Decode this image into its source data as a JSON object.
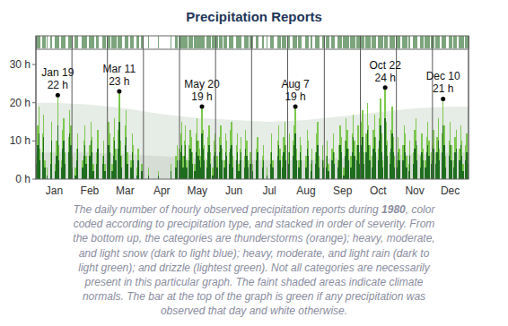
{
  "chart_data": {
    "type": "bar",
    "title": "Precipitation Reports",
    "stacked": true,
    "grid": true,
    "categories": [
      null,
      null,
      null,
      null,
      null,
      null,
      null,
      null,
      null,
      null,
      null,
      null,
      null,
      null,
      null,
      "Jan",
      null,
      null,
      null,
      null,
      null,
      null,
      null,
      null,
      null,
      null,
      null,
      null,
      null,
      null,
      null,
      null,
      null,
      null,
      null,
      null,
      null,
      null,
      null,
      null,
      null,
      null,
      null,
      null,
      null,
      "Feb",
      null,
      null,
      null,
      null,
      null,
      null,
      null,
      null,
      null,
      null,
      null,
      null,
      null,
      null,
      null,
      null,
      null,
      null,
      null,
      null,
      null,
      null,
      null,
      null,
      null,
      null,
      null,
      null,
      null,
      "Mar",
      null,
      null,
      null,
      null,
      null,
      null,
      null,
      null,
      null,
      null,
      null,
      null,
      null,
      null,
      null,
      null,
      null,
      null,
      null,
      null,
      null,
      null,
      null,
      null,
      null,
      null,
      null,
      null,
      null,
      null,
      "Apr",
      null,
      null,
      null,
      null,
      null,
      null,
      null,
      null,
      null,
      null,
      null,
      null,
      null,
      null,
      null,
      null,
      null,
      null,
      null,
      null,
      null,
      null,
      null,
      null,
      null,
      null,
      null,
      null,
      null,
      "May",
      null,
      null,
      null,
      null,
      null,
      null,
      null,
      null,
      null,
      null,
      null,
      null,
      null,
      null,
      null,
      null,
      null,
      null,
      null,
      null,
      null,
      null,
      null,
      null,
      null,
      null,
      null,
      null,
      null,
      null,
      "Jun",
      null,
      null,
      null,
      null,
      null,
      null,
      null,
      null,
      null,
      null,
      null,
      null,
      null,
      null,
      null,
      null,
      null,
      null,
      null,
      null,
      null,
      null,
      null,
      null,
      null,
      null,
      null,
      null,
      null,
      "Jul",
      null,
      null,
      null,
      null,
      null,
      null,
      null,
      null,
      null,
      null,
      null,
      null,
      null,
      null,
      null,
      null,
      null,
      null,
      null,
      null,
      null,
      null,
      null,
      null,
      null,
      null,
      null,
      null,
      null,
      null,
      "Aug",
      null,
      null,
      null,
      null,
      null,
      null,
      null,
      null,
      null,
      null,
      null,
      null,
      null,
      null,
      null,
      null,
      null,
      null,
      null,
      null,
      null,
      null,
      null,
      null,
      null,
      null,
      null,
      null,
      null,
      null,
      "Sep",
      null,
      null,
      null,
      null,
      null,
      null,
      null,
      null,
      null,
      null,
      null,
      null,
      null,
      null,
      null,
      null,
      null,
      null,
      null,
      null,
      null,
      null,
      null,
      null,
      null,
      null,
      null,
      null,
      null,
      "Oct",
      null,
      null,
      null,
      null,
      null,
      null,
      null,
      null,
      null,
      null,
      null,
      null,
      null,
      null,
      null,
      null,
      null,
      null,
      null,
      null,
      null,
      null,
      null,
      null,
      null,
      null,
      null,
      null,
      null,
      null,
      "Nov",
      null,
      null,
      null,
      null,
      null,
      null,
      null,
      null,
      null,
      null,
      null,
      null,
      null,
      null,
      null,
      null,
      null,
      null,
      null,
      null,
      null,
      null,
      null,
      null,
      null,
      null,
      null,
      null,
      null,
      "Dec",
      null,
      null,
      null,
      null,
      null,
      null,
      null,
      null,
      null,
      null,
      null,
      null,
      null,
      null,
      null
    ],
    "series": [
      {
        "color": "#1f6e1f",
        "values": [
          4,
          9,
          12,
          5,
          0,
          7,
          11,
          3,
          0,
          1,
          0,
          0,
          4,
          10,
          0,
          0,
          2,
          6,
          14,
          5,
          0,
          3,
          8,
          10,
          4,
          0,
          0,
          7,
          12,
          9,
          3,
          0,
          0,
          1,
          5,
          8,
          0,
          0,
          0,
          3,
          6,
          9,
          4,
          0,
          0,
          6,
          10,
          7,
          2,
          0,
          0,
          4,
          8,
          0,
          0,
          0,
          4,
          6,
          2,
          0,
          5,
          9,
          7,
          0,
          2,
          6,
          10,
          5,
          0,
          8,
          15,
          6,
          3,
          0,
          0,
          9,
          11,
          4,
          0,
          0,
          3,
          7,
          5,
          0,
          0,
          1,
          5,
          0,
          0,
          2,
          0,
          0,
          0,
          0,
          0,
          1,
          0,
          0,
          0,
          0,
          0,
          0,
          0,
          1,
          0,
          0,
          0,
          0,
          0,
          0,
          0,
          0,
          0,
          0,
          2,
          0,
          0,
          0,
          3,
          5,
          0,
          5,
          7,
          9,
          3,
          6,
          9,
          3,
          0,
          5,
          8,
          7,
          4,
          0,
          2,
          7,
          10,
          6,
          5,
          3,
          12,
          8,
          5,
          0,
          3,
          7,
          9,
          4,
          0,
          1,
          6,
          7,
          5,
          3,
          0,
          7,
          9,
          5,
          0,
          3,
          7,
          6,
          0,
          4,
          8,
          9,
          3,
          0,
          0,
          5,
          7,
          2,
          5,
          7,
          0,
          0,
          3,
          8,
          6,
          3,
          0,
          4,
          0,
          2,
          0,
          0,
          5,
          7,
          0,
          0,
          0,
          3,
          5,
          0,
          0,
          1,
          0,
          0,
          4,
          7,
          3,
          0,
          0,
          0,
          6,
          9,
          5,
          0,
          3,
          7,
          9,
          5,
          0,
          4,
          7,
          0,
          0,
          6,
          9,
          12,
          5,
          0,
          3,
          7,
          5,
          0,
          0,
          0,
          3,
          8,
          6,
          0,
          2,
          5,
          0,
          0,
          4,
          7,
          9,
          3,
          0,
          0,
          5,
          3,
          0,
          3,
          6,
          2,
          0,
          0,
          5,
          7,
          4,
          0,
          0,
          3,
          5,
          9,
          7,
          0,
          1,
          6,
          10,
          8,
          5,
          0,
          3,
          7,
          11,
          6,
          0,
          5,
          9,
          4,
          6,
          9,
          11,
          4,
          0,
          7,
          13,
          9,
          5,
          0,
          3,
          8,
          11,
          7,
          0,
          5,
          10,
          14,
          7,
          3,
          0,
          16,
          9,
          6,
          0,
          4,
          8,
          12,
          7,
          3,
          0,
          3,
          7,
          5,
          0,
          0,
          5,
          9,
          7,
          3,
          0,
          2,
          6,
          0,
          0,
          4,
          8,
          10,
          5,
          0,
          0,
          3,
          7,
          5,
          0,
          3,
          7,
          9,
          6,
          0,
          4,
          5,
          8,
          0,
          4,
          7,
          10,
          5,
          0,
          7,
          14,
          9,
          3,
          0,
          0,
          6,
          9,
          5,
          0,
          3,
          7,
          8,
          0,
          0,
          5,
          9,
          6,
          2,
          0,
          5,
          7,
          4
        ]
      },
      {
        "color": "#7cc84e",
        "values": [
          2,
          5,
          7,
          3,
          0,
          5,
          6,
          2,
          0,
          2,
          0,
          0,
          3,
          5,
          0,
          0,
          2,
          4,
          8,
          4,
          0,
          2,
          5,
          6,
          3,
          0,
          0,
          4,
          6,
          5,
          3,
          0,
          0,
          2,
          3,
          4,
          0,
          0,
          0,
          2,
          4,
          5,
          2,
          0,
          0,
          3,
          5,
          4,
          2,
          0,
          0,
          3,
          5,
          0,
          0,
          0,
          2,
          4,
          2,
          0,
          4,
          6,
          5,
          0,
          2,
          5,
          6,
          3,
          0,
          5,
          8,
          4,
          3,
          0,
          0,
          5,
          7,
          3,
          0,
          0,
          2,
          5,
          4,
          0,
          0,
          2,
          3,
          0,
          0,
          2,
          0,
          0,
          0,
          0,
          0,
          2,
          0,
          0,
          0,
          0,
          0,
          0,
          0,
          1,
          0,
          0,
          0,
          0,
          0,
          0,
          0,
          0,
          0,
          0,
          2,
          0,
          0,
          0,
          3,
          4,
          0,
          3,
          5,
          6,
          3,
          4,
          5,
          2,
          0,
          4,
          5,
          4,
          3,
          0,
          2,
          5,
          6,
          4,
          3,
          3,
          7,
          5,
          4,
          0,
          2,
          4,
          5,
          3,
          0,
          2,
          4,
          5,
          4,
          3,
          0,
          4,
          5,
          3,
          0,
          2,
          5,
          4,
          0,
          3,
          5,
          6,
          3,
          0,
          0,
          4,
          5,
          2,
          3,
          4,
          0,
          0,
          3,
          5,
          4,
          2,
          0,
          3,
          0,
          2,
          0,
          0,
          3,
          4,
          0,
          0,
          0,
          3,
          4,
          0,
          0,
          2,
          0,
          0,
          3,
          5,
          2,
          0,
          0,
          0,
          4,
          5,
          3,
          0,
          3,
          4,
          6,
          4,
          0,
          3,
          5,
          0,
          0,
          4,
          5,
          7,
          3,
          0,
          2,
          4,
          4,
          0,
          0,
          0,
          3,
          5,
          4,
          0,
          2,
          3,
          0,
          0,
          3,
          5,
          6,
          3,
          0,
          0,
          4,
          2,
          0,
          3,
          4,
          2,
          0,
          0,
          3,
          5,
          3,
          0,
          0,
          2,
          4,
          5,
          4,
          0,
          2,
          4,
          6,
          5,
          3,
          0,
          3,
          5,
          6,
          4,
          0,
          4,
          5,
          3,
          4,
          6,
          7,
          3,
          0,
          5,
          7,
          5,
          4,
          0,
          3,
          5,
          6,
          4,
          0,
          3,
          6,
          7,
          5,
          2,
          0,
          8,
          6,
          4,
          0,
          3,
          5,
          7,
          4,
          3,
          0,
          2,
          4,
          3,
          0,
          0,
          4,
          5,
          5,
          3,
          0,
          2,
          4,
          0,
          0,
          3,
          5,
          6,
          4,
          0,
          0,
          3,
          5,
          3,
          0,
          2,
          4,
          6,
          4,
          0,
          3,
          4,
          5,
          0,
          3,
          4,
          6,
          3,
          0,
          5,
          7,
          5,
          3,
          0,
          0,
          4,
          6,
          4,
          0,
          2,
          4,
          5,
          0,
          0,
          3,
          5,
          4,
          2,
          0,
          4,
          5,
          3
        ]
      }
    ],
    "ylim": [
      0,
      34
    ],
    "yticks": [
      {
        "value": 0,
        "label": "0 h"
      },
      {
        "value": 10,
        "label": "10 h"
      },
      {
        "value": 20,
        "label": "20 h"
      },
      {
        "value": 30,
        "label": "30 h"
      }
    ],
    "normals": {
      "high": [
        20,
        19.5,
        18.5,
        17,
        16,
        15.5,
        15,
        15.5,
        16.5,
        17.5,
        18.5,
        19
      ],
      "low": [
        7,
        7,
        6.5,
        6,
        5.5,
        5,
        5,
        5,
        5.5,
        6,
        6.5,
        7
      ]
    },
    "annotations": [
      {
        "x": 18,
        "label": "Jan 19",
        "value": 22,
        "value_label": "22 h"
      },
      {
        "x": 70,
        "label": "Mar 11",
        "value": 23,
        "value_label": "23 h"
      },
      {
        "x": 140,
        "label": "May 20",
        "value": 19,
        "value_label": "19 h"
      },
      {
        "x": 219,
        "label": "Aug 7",
        "value": 19,
        "value_label": "19 h"
      },
      {
        "x": 295,
        "label": "Oct 22",
        "value": 24,
        "value_label": "24 h"
      },
      {
        "x": 344,
        "label": "Dec 10",
        "value": 21,
        "value_label": "21 h"
      }
    ],
    "caption": [
      "The daily number of hourly observed precipitation reports during 1980, color",
      "coded according to precipitation type, and stacked in order of severity. From",
      "the bottom up, the categories are thunderstorms (orange); heavy, moderate,",
      "and light snow (dark to light blue); heavy, moderate, and light rain (dark to",
      "light green); and drizzle (lightest green). Not all categories are necessarily",
      "present in this particular graph. The faint shaded areas indicate climate",
      "normals. The bar at the top of the graph is green if any precipitation was",
      "observed that day and white otherwise."
    ],
    "caption_emphasis": "1980"
  }
}
